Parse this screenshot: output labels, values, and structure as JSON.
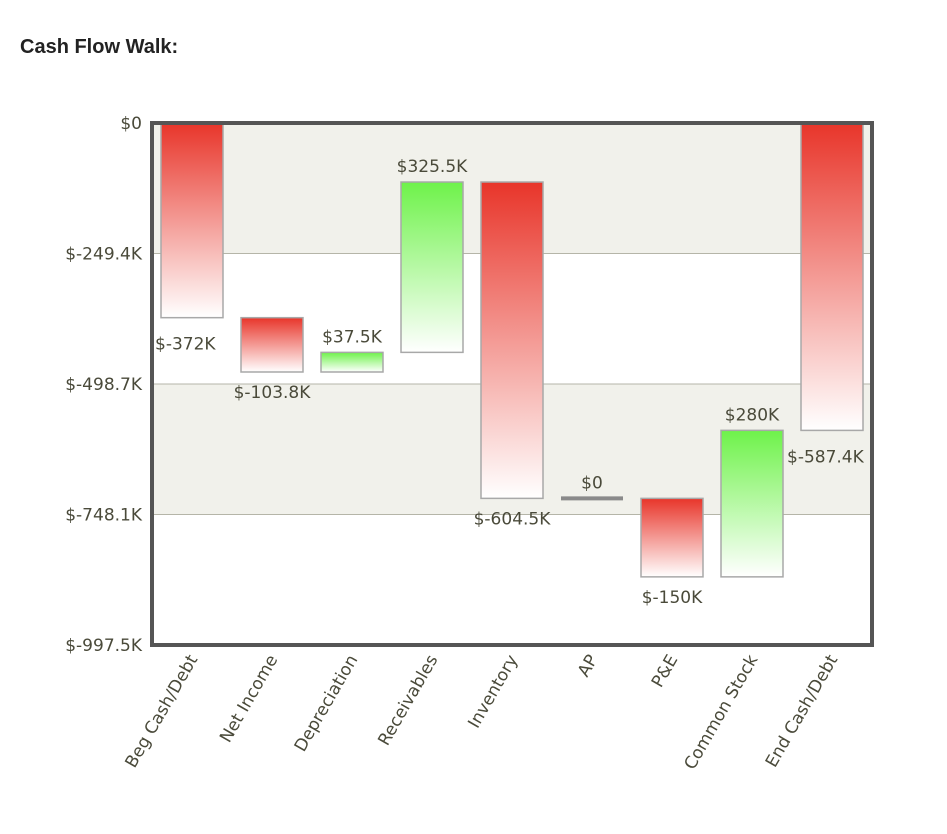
{
  "title": "Cash Flow Walk:",
  "colors": {
    "band": "#f1f1eb",
    "grid": "#b5b5a8",
    "frame": "#555555",
    "negative_top": "#e8352a",
    "positive_top": "#6ef24a",
    "bar_bottom": "#ffffff",
    "bar_stroke": "#a8a8a8",
    "zero_line": "#8a8a8a"
  },
  "chart_data": {
    "type": "waterfall",
    "title": "Cash Flow Walk:",
    "xlabel": "",
    "ylabel": "",
    "ylim": [
      -997.5,
      0
    ],
    "yticks": [
      0,
      -249.4,
      -498.7,
      -748.1,
      -997.5
    ],
    "ytick_labels": [
      "$0",
      "$-249.4K",
      "$-498.7K",
      "$-748.1K",
      "$-997.5K"
    ],
    "grid": true,
    "categories": [
      "Beg Cash/Debt",
      "Net Income",
      "Depreciation",
      "Receivables",
      "Inventory",
      "AP",
      "P&E",
      "Common Stock",
      "End Cash/Debt"
    ],
    "values": [
      -372,
      -103.8,
      37.5,
      325.5,
      -604.5,
      0,
      -150,
      280,
      -587.4
    ],
    "bars": [
      {
        "category": "Beg Cash/Debt",
        "start": 0,
        "end": -372,
        "label": "$-372K",
        "label_position": "bottom-left"
      },
      {
        "category": "Net Income",
        "start": -372,
        "end": -475.8,
        "label": "$-103.8K",
        "label_position": "below"
      },
      {
        "category": "Depreciation",
        "start": -475.8,
        "end": -438.3,
        "label": "$37.5K",
        "label_position": "above"
      },
      {
        "category": "Receivables",
        "start": -438.3,
        "end": -112.8,
        "label": "$325.5K",
        "label_position": "above"
      },
      {
        "category": "Inventory",
        "start": -112.8,
        "end": -717.3,
        "label": "$-604.5K",
        "label_position": "below"
      },
      {
        "category": "AP",
        "start": -717.3,
        "end": -717.3,
        "label": "$0",
        "label_position": "above"
      },
      {
        "category": "P&E",
        "start": -717.3,
        "end": -867.3,
        "label": "$-150K",
        "label_position": "below"
      },
      {
        "category": "Common Stock",
        "start": -867.3,
        "end": -587.3,
        "label": "$280K",
        "label_position": "above"
      },
      {
        "category": "End Cash/Debt",
        "start": 0,
        "end": -587.4,
        "label": "$-587.4K",
        "label_position": "bottom-right"
      }
    ]
  }
}
